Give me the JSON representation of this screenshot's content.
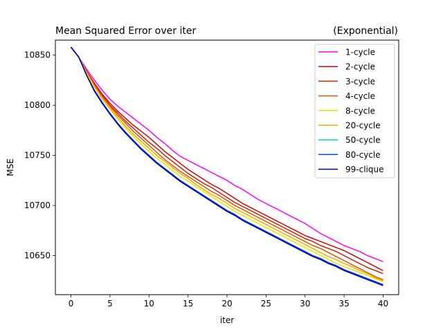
{
  "chart_data": {
    "type": "line",
    "title": "Mean Squared Error over iter",
    "subtitle": "(Exponential)",
    "xlabel": "iter",
    "ylabel": "MSE",
    "xlim": [
      -2,
      42
    ],
    "ylim": [
      10611,
      10865
    ],
    "xticks": [
      0,
      5,
      10,
      15,
      20,
      25,
      30,
      35,
      40
    ],
    "yticks": [
      10650,
      10700,
      10750,
      10800,
      10850
    ],
    "grid": false,
    "legend_position": "top-right",
    "x": [
      0,
      1,
      2,
      3,
      4,
      5,
      6,
      7,
      8,
      9,
      10,
      11,
      12,
      13,
      14,
      15,
      16,
      17,
      18,
      19,
      20,
      21,
      22,
      23,
      24,
      25,
      26,
      27,
      28,
      29,
      30,
      31,
      32,
      33,
      34,
      35,
      36,
      37,
      38,
      39,
      40
    ],
    "series": [
      {
        "name": "1-cycle",
        "color": "#ff00ff",
        "values": [
          10858,
          10848,
          10836,
          10825,
          10815,
          10806,
          10799,
          10793,
          10787,
          10781,
          10775,
          10768,
          10762,
          10755,
          10749,
          10745,
          10741,
          10737,
          10733,
          10729,
          10725,
          10720,
          10716,
          10711,
          10706,
          10702,
          10698,
          10694,
          10690,
          10686,
          10682,
          10677,
          10672,
          10668,
          10664,
          10660,
          10657,
          10654,
          10650,
          10647,
          10644
        ]
      },
      {
        "name": "2-cycle",
        "color": "#dd0000",
        "values": [
          10858,
          10848,
          10834,
          10822,
          10811,
          10802,
          10794,
          10787,
          10780,
          10774,
          10768,
          10761,
          10754,
          10748,
          10742,
          10736,
          10731,
          10726,
          10721,
          10717,
          10712,
          10707,
          10702,
          10698,
          10694,
          10690,
          10686,
          10682,
          10678,
          10674,
          10670,
          10667,
          10664,
          10661,
          10658,
          10655,
          10651,
          10647,
          10643,
          10639,
          10635
        ]
      },
      {
        "name": "3-cycle",
        "color": "#cc2200",
        "values": [
          10858,
          10848,
          10834,
          10821,
          10810,
          10800,
          10792,
          10784,
          10777,
          10770,
          10763,
          10757,
          10750,
          10744,
          10738,
          10732,
          10727,
          10722,
          10718,
          10713,
          10708,
          10703,
          10699,
          10695,
          10691,
          10687,
          10683,
          10679,
          10675,
          10671,
          10667,
          10664,
          10660,
          10657,
          10654,
          10650,
          10646,
          10642,
          10638,
          10635,
          10632
        ]
      },
      {
        "name": "4-cycle",
        "color": "#dd5500",
        "values": [
          10858,
          10848,
          10833,
          10820,
          10809,
          10799,
          10790,
          10782,
          10774,
          10767,
          10760,
          10753,
          10746,
          10740,
          10734,
          10729,
          10724,
          10719,
          10714,
          10710,
          10705,
          10700,
          10696,
          10692,
          10688,
          10684,
          10680,
          10676,
          10672,
          10668,
          10664,
          10660,
          10657,
          10653,
          10649,
          10645,
          10641,
          10637,
          10633,
          10629,
          10626
        ]
      },
      {
        "name": "8-cycle",
        "color": "#eedd00",
        "values": [
          10858,
          10848,
          10832,
          10818,
          10806,
          10796,
          10786,
          10777,
          10769,
          10761,
          10754,
          10747,
          10741,
          10735,
          10729,
          10724,
          10719,
          10714,
          10709,
          10704,
          10699,
          10694,
          10690,
          10686,
          10682,
          10678,
          10674,
          10670,
          10666,
          10662,
          10658,
          10654,
          10650,
          10646,
          10642,
          10639,
          10636,
          10633,
          10630,
          10627,
          10624
        ]
      },
      {
        "name": "20-cycle",
        "color": "#eeaa00",
        "values": [
          10858,
          10848,
          10833,
          10819,
          10807,
          10797,
          10788,
          10779,
          10771,
          10764,
          10757,
          10750,
          10744,
          10738,
          10732,
          10727,
          10721,
          10716,
          10711,
          10707,
          10702,
          10697,
          10693,
          10689,
          10685,
          10681,
          10677,
          10673,
          10669,
          10665,
          10661,
          10657,
          10653,
          10649,
          10646,
          10642,
          10639,
          10635,
          10632,
          10628,
          10625
        ]
      },
      {
        "name": "50-cycle",
        "color": "#00ddbb",
        "values": [
          10858,
          10848,
          10830,
          10815,
          10803,
          10792,
          10782,
          10773,
          10765,
          10757,
          10750,
          10743,
          10737,
          10731,
          10725,
          10720,
          10715,
          10710,
          10705,
          10700,
          10695,
          10691,
          10686,
          10682,
          10678,
          10674,
          10670,
          10666,
          10662,
          10658,
          10654,
          10650,
          10647,
          10643,
          10640,
          10636,
          10633,
          10630,
          10627,
          10624,
          10621
        ]
      },
      {
        "name": "80-cycle",
        "color": "#0044ee",
        "values": [
          10858,
          10848,
          10830,
          10815,
          10803,
          10792,
          10782,
          10773,
          10765,
          10757,
          10750,
          10743,
          10737,
          10731,
          10725,
          10720,
          10715,
          10710,
          10705,
          10700,
          10695,
          10691,
          10686,
          10682,
          10678,
          10674,
          10670,
          10666,
          10662,
          10658,
          10654,
          10650,
          10647,
          10643,
          10640,
          10636,
          10633,
          10630,
          10627,
          10624,
          10621
        ]
      },
      {
        "name": "99-clique",
        "color": "#0000aa",
        "values": [
          10858,
          10848,
          10830,
          10814,
          10802,
          10791,
          10781,
          10772,
          10764,
          10756,
          10749,
          10742,
          10736,
          10730,
          10724,
          10719,
          10714,
          10709,
          10704,
          10699,
          10694,
          10690,
          10685,
          10681,
          10677,
          10673,
          10669,
          10665,
          10661,
          10657,
          10653,
          10649,
          10646,
          10642,
          10639,
          10635,
          10632,
          10629,
          10626,
          10623,
          10620
        ]
      }
    ]
  }
}
